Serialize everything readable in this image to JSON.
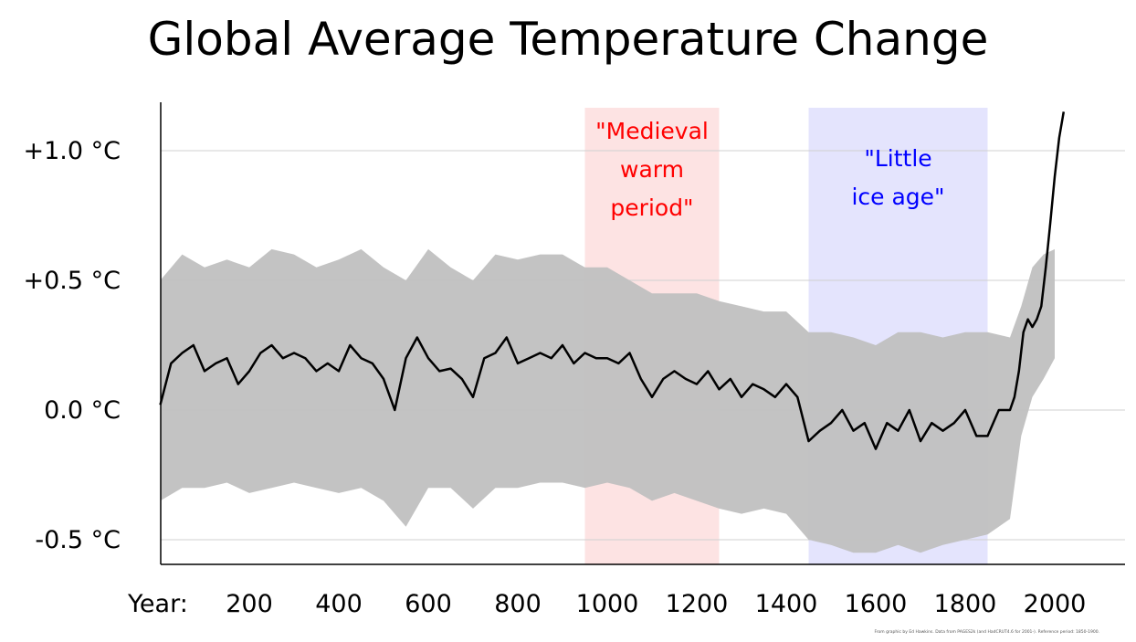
{
  "chart_data": {
    "type": "line",
    "title": "Global Average Temperature Change",
    "xlabel": "Year:",
    "ylabel": "",
    "xlim": [
      1,
      2150
    ],
    "ylim": [
      -0.6,
      1.2
    ],
    "grid": true,
    "y_ticks": [
      {
        "value": 1.0,
        "label": "+1.0 °C"
      },
      {
        "value": 0.5,
        "label": "+0.5 °C"
      },
      {
        "value": 0.0,
        "label": "0.0 °C"
      },
      {
        "value": -0.5,
        "label": "-0.5 °C"
      }
    ],
    "x_ticks": [
      {
        "value": 200,
        "label": "200"
      },
      {
        "value": 400,
        "label": "400"
      },
      {
        "value": 600,
        "label": "600"
      },
      {
        "value": 800,
        "label": "800"
      },
      {
        "value": 1000,
        "label": "1000"
      },
      {
        "value": 1200,
        "label": "1200"
      },
      {
        "value": 1400,
        "label": "1400"
      },
      {
        "value": 1600,
        "label": "1600"
      },
      {
        "value": 1800,
        "label": "1800"
      },
      {
        "value": 2000,
        "label": "2000"
      }
    ],
    "bands": [
      {
        "start": 950,
        "end": 1250,
        "lines": [
          "\"Medieval",
          "warm",
          "period\""
        ],
        "color": "#fde3e3",
        "text_color": "#ff0000"
      },
      {
        "start": 1450,
        "end": 1850,
        "lines": [
          "\"Little",
          "ice age\""
        ],
        "color": "#e4e4fd",
        "text_color": "#0000ff"
      }
    ],
    "series": [
      {
        "color": "#000000",
        "x": [
          1,
          25,
          50,
          75,
          100,
          125,
          150,
          175,
          200,
          225,
          250,
          275,
          300,
          325,
          350,
          375,
          400,
          425,
          450,
          475,
          500,
          525,
          550,
          575,
          600,
          625,
          650,
          675,
          700,
          725,
          750,
          775,
          800,
          825,
          850,
          875,
          900,
          925,
          950,
          975,
          1000,
          1025,
          1050,
          1075,
          1100,
          1125,
          1150,
          1175,
          1200,
          1225,
          1250,
          1275,
          1300,
          1325,
          1350,
          1375,
          1400,
          1425,
          1450,
          1475,
          1500,
          1525,
          1550,
          1575,
          1600,
          1625,
          1650,
          1675,
          1700,
          1725,
          1750,
          1775,
          1800,
          1825,
          1850,
          1875,
          1900,
          1910,
          1920,
          1930,
          1940,
          1950,
          1960,
          1970,
          1980,
          1990,
          2000,
          2010,
          2020
        ],
        "values": [
          0.02,
          0.18,
          0.22,
          0.25,
          0.15,
          0.18,
          0.2,
          0.1,
          0.15,
          0.22,
          0.25,
          0.2,
          0.22,
          0.2,
          0.15,
          0.18,
          0.15,
          0.25,
          0.2,
          0.18,
          0.12,
          0.0,
          0.2,
          0.28,
          0.2,
          0.15,
          0.16,
          0.12,
          0.05,
          0.2,
          0.22,
          0.28,
          0.18,
          0.2,
          0.22,
          0.2,
          0.25,
          0.18,
          0.22,
          0.2,
          0.2,
          0.18,
          0.22,
          0.12,
          0.05,
          0.12,
          0.15,
          0.12,
          0.1,
          0.15,
          0.08,
          0.12,
          0.05,
          0.1,
          0.08,
          0.05,
          0.1,
          0.05,
          -0.12,
          -0.08,
          -0.05,
          0.0,
          -0.08,
          -0.05,
          -0.15,
          -0.05,
          -0.08,
          0.0,
          -0.12,
          -0.05,
          -0.08,
          -0.05,
          0.0,
          -0.1,
          -0.1,
          0.0,
          0.0,
          0.05,
          0.15,
          0.3,
          0.35,
          0.32,
          0.35,
          0.4,
          0.55,
          0.72,
          0.9,
          1.05,
          1.15
        ]
      }
    ],
    "uncertainty": {
      "color": "#c0c0c0",
      "x": [
        1,
        50,
        100,
        150,
        200,
        250,
        300,
        350,
        400,
        450,
        500,
        550,
        600,
        650,
        700,
        750,
        800,
        850,
        900,
        950,
        1000,
        1050,
        1100,
        1150,
        1200,
        1250,
        1300,
        1350,
        1400,
        1450,
        1500,
        1550,
        1600,
        1650,
        1700,
        1750,
        1800,
        1850,
        1900,
        1925,
        1950,
        1975,
        2000
      ],
      "upper": [
        0.5,
        0.6,
        0.55,
        0.58,
        0.55,
        0.62,
        0.6,
        0.55,
        0.58,
        0.62,
        0.55,
        0.5,
        0.62,
        0.55,
        0.5,
        0.6,
        0.58,
        0.6,
        0.6,
        0.55,
        0.55,
        0.5,
        0.45,
        0.45,
        0.45,
        0.42,
        0.4,
        0.38,
        0.38,
        0.3,
        0.3,
        0.28,
        0.25,
        0.3,
        0.3,
        0.28,
        0.3,
        0.3,
        0.28,
        0.4,
        0.55,
        0.6,
        0.62
      ],
      "lower": [
        -0.35,
        -0.3,
        -0.3,
        -0.28,
        -0.32,
        -0.3,
        -0.28,
        -0.3,
        -0.32,
        -0.3,
        -0.35,
        -0.45,
        -0.3,
        -0.3,
        -0.38,
        -0.3,
        -0.3,
        -0.28,
        -0.28,
        -0.3,
        -0.28,
        -0.3,
        -0.35,
        -0.32,
        -0.35,
        -0.38,
        -0.4,
        -0.38,
        -0.4,
        -0.5,
        -0.52,
        -0.55,
        -0.55,
        -0.52,
        -0.55,
        -0.52,
        -0.5,
        -0.48,
        -0.42,
        -0.1,
        0.05,
        0.12,
        0.2
      ]
    }
  },
  "credit": "From graphic by Ed Hawkins. Data from PAGES2k (and HadCRUT4.6 for 2001-). Reference period: 1850-1900."
}
